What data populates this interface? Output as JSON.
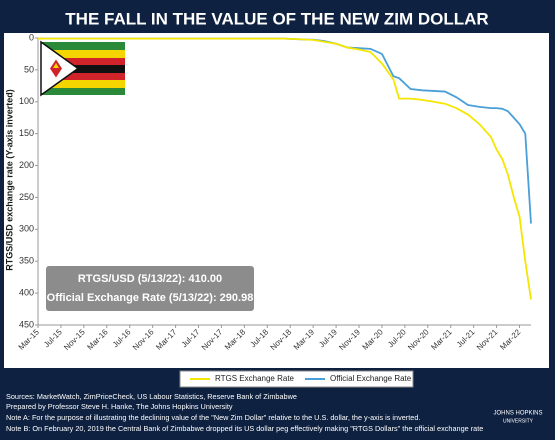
{
  "chart_data": {
    "type": "line",
    "title": "THE FALL IN THE VALUE OF THE NEW ZIM DOLLAR",
    "y_label": "RTGS/USD exchange rate (Y-axis inverted)",
    "y_inverted": true,
    "x": [
      "2015-03",
      "2018-10",
      "2019-02",
      "2019-03",
      "2019-05",
      "2019-07",
      "2019-09",
      "2019-11",
      "2020-01",
      "2020-03",
      "2020-05",
      "2020-06",
      "2020-08",
      "2020-10",
      "2020-12",
      "2021-02",
      "2021-04",
      "2021-06",
      "2021-08",
      "2021-10",
      "2021-11",
      "2021-12",
      "2022-01",
      "2022-02",
      "2022-03",
      "2022-04",
      "2022-05"
    ],
    "series": [
      {
        "name": "RTGS Exchange Rate",
        "color": "#f5e600",
        "values": [
          1,
          1,
          2.5,
          3,
          6,
          9,
          15,
          18,
          22,
          40,
          65,
          95,
          95,
          97,
          100,
          103,
          110,
          120,
          135,
          155,
          175,
          190,
          215,
          250,
          280,
          350,
          410
        ]
      },
      {
        "name": "Official Exchange Rate",
        "color": "#4a9fd8",
        "values": [
          1,
          1,
          2.5,
          2.5,
          5,
          9,
          15,
          16,
          17,
          25,
          60,
          63,
          80,
          82,
          83,
          84,
          93,
          105,
          108,
          110,
          110,
          111,
          115,
          125,
          135,
          150,
          291
        ]
      }
    ],
    "xlim": [
      "2015-03",
      "2022-05"
    ],
    "xticks": [
      {
        "value": "2015-03",
        "label": "Mar-15"
      },
      {
        "value": "2015-07",
        "label": "Jul-15"
      },
      {
        "value": "2015-11",
        "label": "Nov-15"
      },
      {
        "value": "2016-03",
        "label": "Mar-16"
      },
      {
        "value": "2016-07",
        "label": "Jul-16"
      },
      {
        "value": "2016-11",
        "label": "Nov-16"
      },
      {
        "value": "2017-03",
        "label": "Mar-17"
      },
      {
        "value": "2017-07",
        "label": "Jul-17"
      },
      {
        "value": "2017-11",
        "label": "Nov-17"
      },
      {
        "value": "2018-03",
        "label": "Mar-18"
      },
      {
        "value": "2018-07",
        "label": "Jul-18"
      },
      {
        "value": "2018-11",
        "label": "Nov-18"
      },
      {
        "value": "2019-03",
        "label": "Mar-19"
      },
      {
        "value": "2019-07",
        "label": "Jul-19"
      },
      {
        "value": "2019-11",
        "label": "Nov-19"
      },
      {
        "value": "2020-03",
        "label": "Mar-20"
      },
      {
        "value": "2020-07",
        "label": "Jul-20"
      },
      {
        "value": "2020-11",
        "label": "Nov-20"
      },
      {
        "value": "2021-03",
        "label": "Mar-21"
      },
      {
        "value": "2021-07",
        "label": "Jul-21"
      },
      {
        "value": "2021-11",
        "label": "Nov-21"
      },
      {
        "value": "2022-03",
        "label": "Mar-22"
      }
    ],
    "ylim": [
      0,
      450
    ],
    "yticks": [
      0,
      50,
      100,
      150,
      200,
      250,
      300,
      350,
      400,
      450
    ],
    "annotations": [
      "RTGS/USD (5/13/22): 410.00",
      "Official Exchange Rate (5/13/22): 290.98"
    ],
    "notes": [
      "Sources: MarketWatch, ZimPriceCheck, US Labour Statistics, Reserve Bank of Zimbabwe",
      "Prepared by Professor Steve H. Hanke, The Johns Hopkins University",
      "Note A: For the purpose of illustrating the declining value of the \"New Zim Dollar\" relative to the U.S. dollar, the y-axis is inverted.",
      "Note B: On February 20, 2019 the Central Bank of Zimbabwe dropped its US dollar peg effectively making \"RTGS Dollars\" the official exchange rate"
    ],
    "logo_text": [
      "JOHNS HOPKINS",
      "UNIVERSITY"
    ]
  }
}
